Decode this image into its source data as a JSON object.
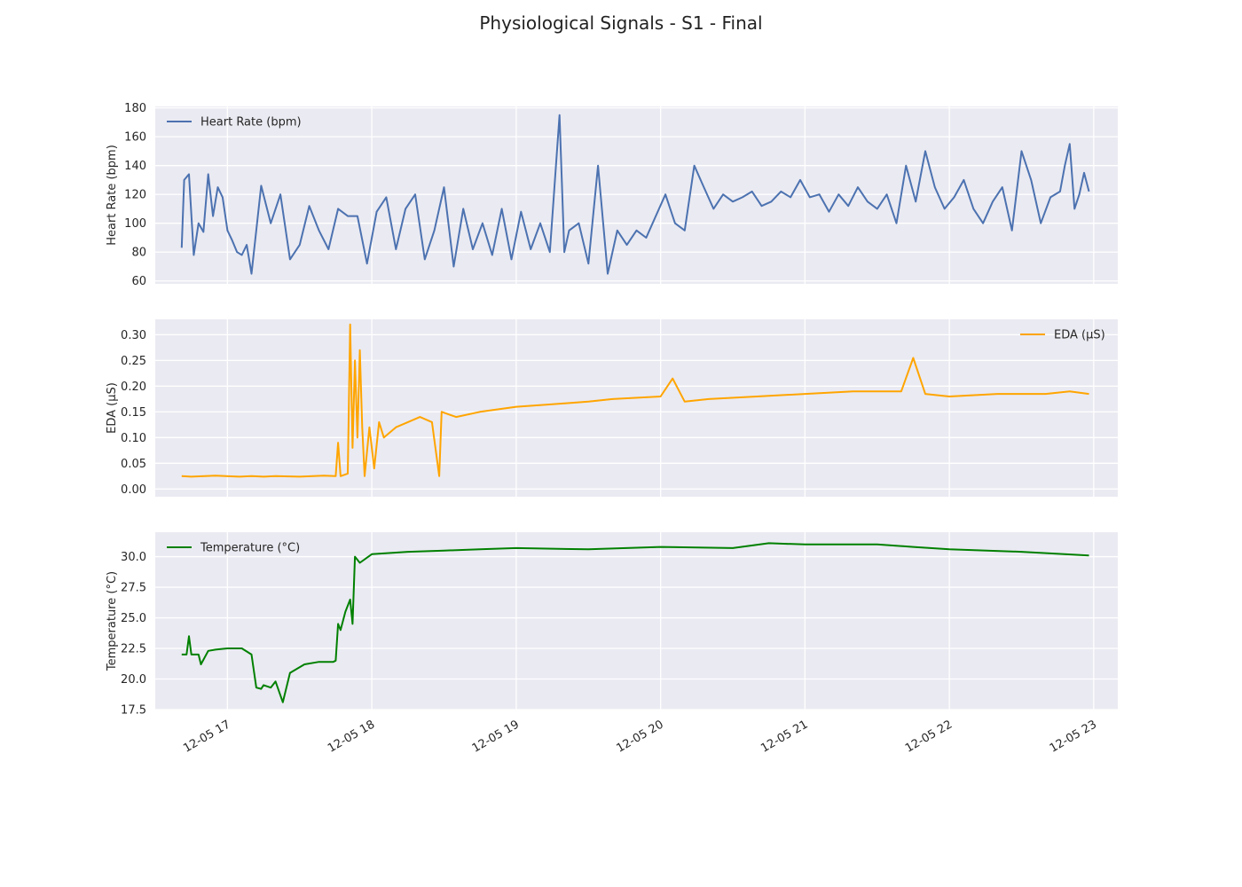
{
  "figure_title": "Physiological Signals - S1 - Final",
  "chart_data": [
    {
      "type": "line",
      "ylabel": "Heart Rate (bpm)",
      "ylim": [
        58,
        181
      ],
      "yticks": [
        "60",
        "80",
        "100",
        "120",
        "140",
        "160",
        "180"
      ],
      "ytick_values": [
        60,
        80,
        100,
        120,
        140,
        160,
        180
      ],
      "grid": true,
      "legend_position": "top-left",
      "series": [
        {
          "name": "Heart Rate (bpm)",
          "color": "#4c72b0",
          "x": [
            "12-05 16:41",
            "12-05 16:42",
            "12-05 16:44",
            "12-05 16:46",
            "12-05 16:48",
            "12-05 16:50",
            "12-05 16:52",
            "12-05 16:54",
            "12-05 16:56",
            "12-05 16:58",
            "12-05 17:00",
            "12-05 17:02",
            "12-05 17:04",
            "12-05 17:06",
            "12-05 17:08",
            "12-05 17:10",
            "12-05 17:14",
            "12-05 17:18",
            "12-05 17:22",
            "12-05 17:26",
            "12-05 17:30",
            "12-05 17:34",
            "12-05 17:38",
            "12-05 17:42",
            "12-05 17:46",
            "12-05 17:50",
            "12-05 17:54",
            "12-05 17:58",
            "12-05 18:02",
            "12-05 18:06",
            "12-05 18:10",
            "12-05 18:14",
            "12-05 18:18",
            "12-05 18:22",
            "12-05 18:26",
            "12-05 18:30",
            "12-05 18:34",
            "12-05 18:38",
            "12-05 18:42",
            "12-05 18:46",
            "12-05 18:50",
            "12-05 18:54",
            "12-05 18:58",
            "12-05 19:02",
            "12-05 19:06",
            "12-05 19:10",
            "12-05 19:14",
            "12-05 19:18",
            "12-05 19:20",
            "12-05 19:22",
            "12-05 19:26",
            "12-05 19:30",
            "12-05 19:34",
            "12-05 19:38",
            "12-05 19:42",
            "12-05 19:46",
            "12-05 19:50",
            "12-05 19:54",
            "12-05 19:58",
            "12-05 20:02",
            "12-05 20:06",
            "12-05 20:10",
            "12-05 20:14",
            "12-05 20:18",
            "12-05 20:22",
            "12-05 20:26",
            "12-05 20:30",
            "12-05 20:34",
            "12-05 20:38",
            "12-05 20:42",
            "12-05 20:46",
            "12-05 20:50",
            "12-05 20:54",
            "12-05 20:58",
            "12-05 21:02",
            "12-05 21:06",
            "12-05 21:10",
            "12-05 21:14",
            "12-05 21:18",
            "12-05 21:22",
            "12-05 21:26",
            "12-05 21:30",
            "12-05 21:34",
            "12-05 21:38",
            "12-05 21:42",
            "12-05 21:46",
            "12-05 21:50",
            "12-05 21:54",
            "12-05 21:58",
            "12-05 22:02",
            "12-05 22:06",
            "12-05 22:10",
            "12-05 22:14",
            "12-05 22:18",
            "12-05 22:22",
            "12-05 22:26",
            "12-05 22:30",
            "12-05 22:34",
            "12-05 22:38",
            "12-05 22:42",
            "12-05 22:46",
            "12-05 22:48",
            "12-05 22:50",
            "12-05 22:52",
            "12-05 22:54",
            "12-05 22:56",
            "12-05 22:58"
          ],
          "y": [
            83,
            130,
            134,
            78,
            100,
            94,
            134,
            105,
            125,
            118,
            95,
            88,
            80,
            78,
            85,
            65,
            126,
            100,
            120,
            75,
            85,
            112,
            95,
            82,
            110,
            105,
            105,
            72,
            108,
            118,
            82,
            110,
            120,
            75,
            95,
            125,
            70,
            110,
            82,
            100,
            78,
            110,
            75,
            108,
            82,
            100,
            80,
            175,
            80,
            95,
            100,
            72,
            140,
            65,
            95,
            85,
            95,
            90,
            105,
            120,
            100,
            95,
            140,
            125,
            110,
            120,
            115,
            118,
            122,
            112,
            115,
            122,
            118,
            130,
            118,
            120,
            108,
            120,
            112,
            125,
            115,
            110,
            120,
            100,
            140,
            115,
            150,
            125,
            110,
            118,
            130,
            110,
            100,
            115,
            125,
            95,
            150,
            130,
            100,
            118,
            122,
            140,
            155,
            110,
            120,
            135,
            122
          ]
        }
      ]
    },
    {
      "type": "line",
      "ylabel": "EDA (μS)",
      "ylim": [
        -0.015,
        0.33
      ],
      "yticks": [
        "0.00",
        "0.05",
        "0.10",
        "0.15",
        "0.20",
        "0.25",
        "0.30"
      ],
      "ytick_values": [
        0.0,
        0.05,
        0.1,
        0.15,
        0.2,
        0.25,
        0.3
      ],
      "grid": true,
      "legend_position": "top-right",
      "series": [
        {
          "name": "EDA (μS)",
          "color": "#ffa500",
          "x": [
            "12-05 16:41",
            "12-05 16:45",
            "12-05 16:55",
            "12-05 17:05",
            "12-05 17:10",
            "12-05 17:15",
            "12-05 17:20",
            "12-05 17:30",
            "12-05 17:40",
            "12-05 17:45",
            "12-05 17:46",
            "12-05 17:47",
            "12-05 17:50",
            "12-05 17:51",
            "12-05 17:52",
            "12-05 17:53",
            "12-05 17:54",
            "12-05 17:55",
            "12-05 17:56",
            "12-05 17:57",
            "12-05 17:59",
            "12-05 18:01",
            "12-05 18:03",
            "12-05 18:05",
            "12-05 18:10",
            "12-05 18:15",
            "12-05 18:20",
            "12-05 18:25",
            "12-05 18:28",
            "12-05 18:29",
            "12-05 18:35",
            "12-05 18:45",
            "12-05 19:00",
            "12-05 19:15",
            "12-05 19:30",
            "12-05 19:40",
            "12-05 20:00",
            "12-05 20:05",
            "12-05 20:10",
            "12-05 20:20",
            "12-05 20:40",
            "12-05 21:00",
            "12-05 21:20",
            "12-05 21:40",
            "12-05 21:45",
            "12-05 21:50",
            "12-05 22:00",
            "12-05 22:20",
            "12-05 22:40",
            "12-05 22:50",
            "12-05 22:58"
          ],
          "y": [
            0.025,
            0.024,
            0.026,
            0.024,
            0.025,
            0.024,
            0.025,
            0.024,
            0.026,
            0.025,
            0.09,
            0.025,
            0.03,
            0.32,
            0.08,
            0.25,
            0.1,
            0.27,
            0.12,
            0.025,
            0.12,
            0.04,
            0.13,
            0.1,
            0.12,
            0.13,
            0.14,
            0.13,
            0.025,
            0.15,
            0.14,
            0.15,
            0.16,
            0.165,
            0.17,
            0.175,
            0.18,
            0.215,
            0.17,
            0.175,
            0.18,
            0.185,
            0.19,
            0.19,
            0.255,
            0.185,
            0.18,
            0.185,
            0.185,
            0.19,
            0.185
          ]
        }
      ]
    },
    {
      "type": "line",
      "ylabel": "Temperature (°C)",
      "ylim": [
        17.5,
        32.0
      ],
      "yticks": [
        "17.5",
        "20.0",
        "22.5",
        "25.0",
        "27.5",
        "30.0"
      ],
      "ytick_values": [
        17.5,
        20.0,
        22.5,
        25.0,
        27.5,
        30.0
      ],
      "grid": true,
      "legend_position": "top-left",
      "series": [
        {
          "name": "Temperature (°C)",
          "color": "#008000",
          "x": [
            "12-05 16:41",
            "12-05 16:43",
            "12-05 16:44",
            "12-05 16:45",
            "12-05 16:48",
            "12-05 16:49",
            "12-05 16:52",
            "12-05 16:55",
            "12-05 17:00",
            "12-05 17:06",
            "12-05 17:10",
            "12-05 17:12",
            "12-05 17:14",
            "12-05 17:15",
            "12-05 17:18",
            "12-05 17:20",
            "12-05 17:23",
            "12-05 17:26",
            "12-05 17:32",
            "12-05 17:38",
            "12-05 17:44",
            "12-05 17:45",
            "12-05 17:46",
            "12-05 17:47",
            "12-05 17:49",
            "12-05 17:51",
            "12-05 17:52",
            "12-05 17:53",
            "12-05 17:55",
            "12-05 18:00",
            "12-05 18:15",
            "12-05 18:30",
            "12-05 18:45",
            "12-05 19:00",
            "12-05 19:30",
            "12-05 20:00",
            "12-05 20:30",
            "12-05 20:45",
            "12-05 21:00",
            "12-05 21:30",
            "12-05 21:45",
            "12-05 22:00",
            "12-05 22:30",
            "12-05 22:58"
          ],
          "y": [
            22.0,
            22.0,
            23.5,
            22.0,
            22.0,
            21.2,
            22.3,
            22.4,
            22.5,
            22.5,
            22.0,
            19.3,
            19.2,
            19.5,
            19.3,
            19.8,
            18.1,
            20.5,
            21.2,
            21.4,
            21.4,
            21.5,
            24.5,
            24.0,
            25.5,
            26.5,
            24.5,
            30.0,
            29.5,
            30.2,
            30.4,
            30.5,
            30.6,
            30.7,
            30.6,
            30.8,
            30.7,
            31.1,
            31.0,
            31.0,
            30.8,
            30.6,
            30.4,
            30.1
          ]
        }
      ]
    }
  ],
  "shared_x": {
    "type": "datetime",
    "xlim": [
      "12-05 16:30",
      "12-05 23:10"
    ],
    "ticks": [
      "12-05 17",
      "12-05 18",
      "12-05 19",
      "12-05 20",
      "12-05 21",
      "12-05 22",
      "12-05 23"
    ]
  }
}
